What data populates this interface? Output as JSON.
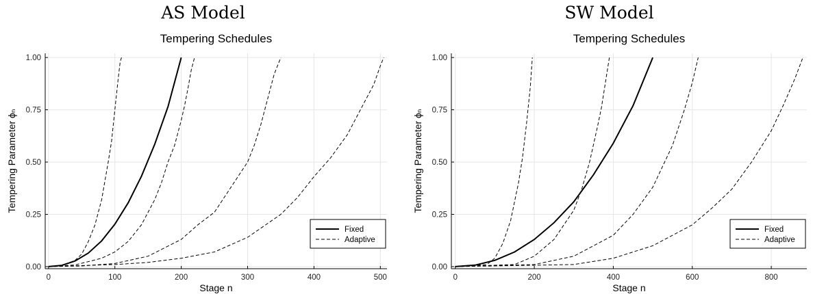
{
  "chart_data": [
    {
      "type": "line",
      "title": "AS Model",
      "subtitle": "Tempering Schedules",
      "xlabel": "Stage n",
      "ylabel": "Tempering Parameter ϕₙ",
      "xlim": [
        -5,
        510
      ],
      "ylim": [
        -0.01,
        1.02
      ],
      "xticks": [
        0,
        100,
        200,
        300,
        400,
        500
      ],
      "yticks": [
        0.0,
        0.25,
        0.5,
        0.75,
        1.0
      ],
      "ytick_labels": [
        "0.00",
        "0.25",
        "0.50",
        "0.75",
        "1.00"
      ],
      "grid": true,
      "legend_position": "bottom-right",
      "series": [
        {
          "name": "Fixed",
          "style": "solid",
          "x": [
            0,
            20,
            40,
            60,
            80,
            100,
            120,
            140,
            160,
            180,
            200
          ],
          "y": [
            0,
            0.006,
            0.027,
            0.065,
            0.123,
            0.203,
            0.305,
            0.432,
            0.585,
            0.765,
            1.0
          ]
        },
        {
          "name": "Adaptive",
          "style": "dashed",
          "x": [
            0,
            20,
            40,
            50,
            60,
            70,
            80,
            90,
            95,
            100,
            105,
            108,
            110
          ],
          "y": [
            0,
            0.005,
            0.03,
            0.06,
            0.12,
            0.2,
            0.32,
            0.5,
            0.6,
            0.75,
            0.9,
            0.98,
            1.0
          ]
        },
        {
          "name": "",
          "style": "dashed",
          "x": [
            0,
            40,
            80,
            100,
            120,
            140,
            160,
            170,
            180,
            190,
            200,
            205,
            210,
            215,
            220
          ],
          "y": [
            0,
            0.008,
            0.04,
            0.07,
            0.12,
            0.2,
            0.32,
            0.4,
            0.5,
            0.58,
            0.7,
            0.77,
            0.85,
            0.94,
            1.0
          ]
        },
        {
          "name": "",
          "style": "dashed",
          "x": [
            0,
            50,
            100,
            150,
            200,
            225,
            250,
            275,
            300,
            310,
            320,
            330,
            340,
            350
          ],
          "y": [
            0,
            0.003,
            0.015,
            0.05,
            0.13,
            0.2,
            0.26,
            0.38,
            0.5,
            0.58,
            0.68,
            0.8,
            0.92,
            1.0
          ]
        },
        {
          "name": "",
          "style": "dashed",
          "x": [
            0,
            100,
            150,
            200,
            250,
            300,
            350,
            375,
            400,
            425,
            450,
            460,
            470,
            480,
            490,
            500,
            505
          ],
          "y": [
            0,
            0.01,
            0.02,
            0.04,
            0.07,
            0.14,
            0.25,
            0.33,
            0.43,
            0.52,
            0.63,
            0.69,
            0.75,
            0.81,
            0.87,
            0.96,
            1.0
          ]
        }
      ]
    },
    {
      "type": "line",
      "title": "SW Model",
      "subtitle": "Tempering Schedules",
      "xlabel": "Stage n",
      "ylabel": "Tempering Parameter ϕₙ",
      "xlim": [
        -10,
        890
      ],
      "ylim": [
        -0.01,
        1.02
      ],
      "xticks": [
        0,
        200,
        400,
        600,
        800
      ],
      "yticks": [
        0.0,
        0.25,
        0.5,
        0.75,
        1.0
      ],
      "ytick_labels": [
        "0.00",
        "0.25",
        "0.50",
        "0.75",
        "1.00"
      ],
      "grid": true,
      "legend_position": "bottom-right",
      "series": [
        {
          "name": "Fixed",
          "style": "solid",
          "x": [
            0,
            50,
            100,
            150,
            200,
            250,
            300,
            350,
            400,
            450,
            500
          ],
          "y": [
            0,
            0.007,
            0.03,
            0.07,
            0.13,
            0.21,
            0.31,
            0.44,
            0.59,
            0.77,
            1.0
          ]
        },
        {
          "name": "Adaptive",
          "style": "dashed",
          "x": [
            0,
            80,
            100,
            120,
            140,
            160,
            170,
            180,
            190,
            195
          ],
          "y": [
            0,
            0.01,
            0.04,
            0.11,
            0.22,
            0.4,
            0.52,
            0.68,
            0.86,
            1.0
          ]
        },
        {
          "name": "",
          "style": "dashed",
          "x": [
            0,
            150,
            200,
            250,
            300,
            320,
            340,
            360,
            370,
            380,
            390
          ],
          "y": [
            0,
            0.01,
            0.05,
            0.13,
            0.27,
            0.37,
            0.5,
            0.67,
            0.76,
            0.88,
            1.0
          ]
        },
        {
          "name": "",
          "style": "dashed",
          "x": [
            0,
            200,
            300,
            400,
            450,
            500,
            550,
            580,
            600,
            615
          ],
          "y": [
            0,
            0.01,
            0.05,
            0.15,
            0.25,
            0.38,
            0.58,
            0.75,
            0.88,
            1.0
          ]
        },
        {
          "name": "",
          "style": "dashed",
          "x": [
            0,
            300,
            400,
            500,
            600,
            650,
            700,
            750,
            800,
            830,
            860,
            880
          ],
          "y": [
            0,
            0.01,
            0.04,
            0.1,
            0.2,
            0.28,
            0.37,
            0.5,
            0.65,
            0.77,
            0.9,
            1.0
          ]
        }
      ]
    }
  ]
}
